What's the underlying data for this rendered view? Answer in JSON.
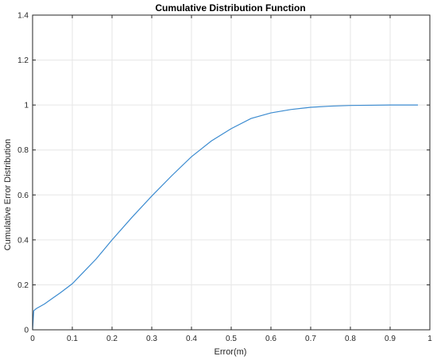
{
  "chart_data": {
    "type": "line",
    "title": "Cumulative Distribution Function",
    "xlabel": "Error(m)",
    "ylabel": "Cumulative Error Distribution",
    "xlim": [
      0,
      1
    ],
    "ylim": [
      0,
      1.4
    ],
    "xticks": [
      0,
      0.1,
      0.2,
      0.3,
      0.4,
      0.5,
      0.6,
      0.7,
      0.8,
      0.9,
      1
    ],
    "xtick_labels": [
      "0",
      "0.1",
      "0.2",
      "0.3",
      "0.4",
      "0.5",
      "0.6",
      "0.7",
      "0.8",
      "0.9",
      "1"
    ],
    "yticks": [
      0,
      0.2,
      0.4,
      0.6,
      0.8,
      1,
      1.2,
      1.4
    ],
    "ytick_labels": [
      "0",
      "0.2",
      "0.4",
      "0.6",
      "0.8",
      "1",
      "1.2",
      "1.4"
    ],
    "grid": true,
    "series": [
      {
        "color": "#3b8bd0",
        "x": [
          0,
          0.002,
          0.003,
          0.01,
          0.03,
          0.05,
          0.07,
          0.1,
          0.13,
          0.16,
          0.2,
          0.25,
          0.3,
          0.35,
          0.4,
          0.45,
          0.5,
          0.55,
          0.6,
          0.65,
          0.7,
          0.75,
          0.8,
          0.85,
          0.9,
          0.97
        ],
        "y": [
          0,
          0.06,
          0.085,
          0.095,
          0.115,
          0.14,
          0.165,
          0.205,
          0.26,
          0.315,
          0.4,
          0.5,
          0.595,
          0.685,
          0.77,
          0.84,
          0.895,
          0.94,
          0.965,
          0.98,
          0.99,
          0.995,
          0.998,
          0.999,
          1.0,
          1.0
        ]
      }
    ]
  }
}
